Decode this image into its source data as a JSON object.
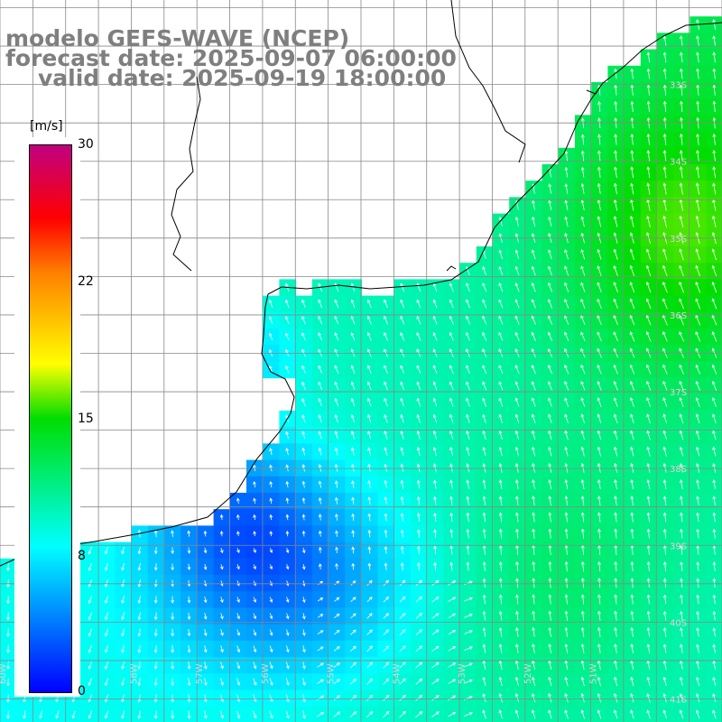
{
  "title": {
    "line1": "modelo GEFS-WAVE (NCEP)",
    "line2": "forecast date: 2025-09-07 06:00:00",
    "line3": "valid date: 2025-09-19 18:00:00"
  },
  "colorbar": {
    "unit": "[m/s]",
    "min": 0,
    "max": 30,
    "ticks": [
      "30",
      "22",
      "15",
      "8",
      "0"
    ],
    "tick_values": [
      30,
      22,
      15,
      8,
      0
    ],
    "colors": [
      "#0000ff",
      "#00ffff",
      "#00dd00",
      "#ffff00",
      "#ff8000",
      "#ff0000",
      "#c00080"
    ]
  },
  "map": {
    "lon_range": [
      -60,
      -49
    ],
    "lat_range": [
      -41.3,
      -31.9
    ],
    "lat_labels": [
      "33S",
      "34S",
      "35S",
      "36S",
      "37S",
      "38S",
      "39S",
      "40S",
      "41S"
    ],
    "lat_values": [
      -33,
      -34,
      -35,
      -36,
      -37,
      -38,
      -39,
      -40,
      -41
    ],
    "lon_labels": [
      "60W",
      "59W",
      "58W",
      "57W",
      "56W",
      "55W",
      "54W",
      "53W",
      "52W",
      "51W"
    ],
    "lon_values": [
      -60,
      -59,
      -58,
      -57,
      -56,
      -55,
      -54,
      -53,
      -52,
      -51
    ],
    "arrow_color": "#ffffff",
    "land_color": "#ffffff",
    "coast_color": "#000000",
    "grid_color": "#888888"
  }
}
